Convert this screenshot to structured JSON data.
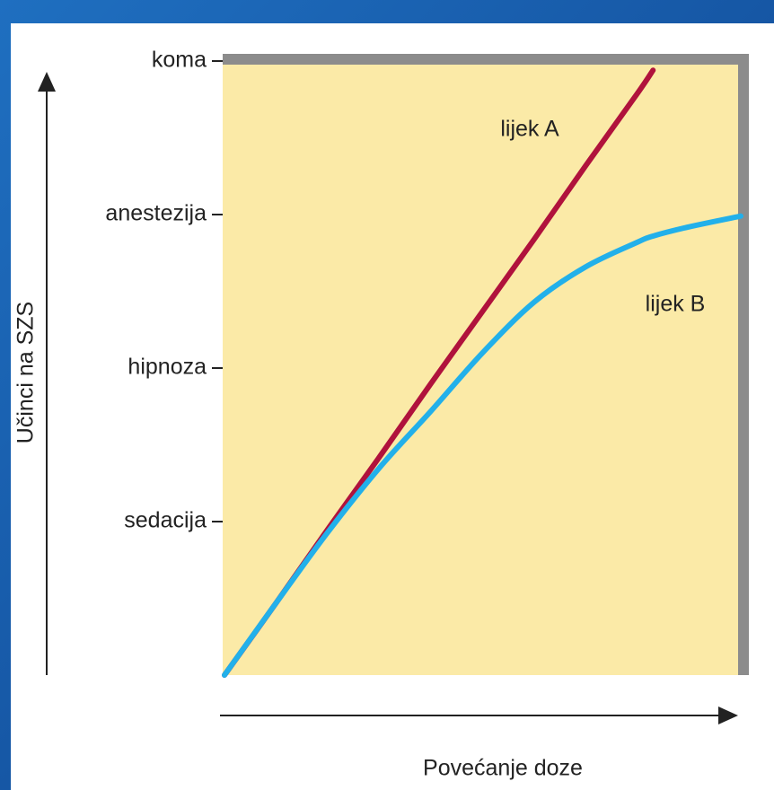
{
  "chart_data": {
    "type": "line",
    "y_label": "Učinci na SZS",
    "x_label": "Povećanje doze",
    "x": [
      0,
      1,
      2,
      3,
      4,
      5,
      6,
      7,
      8,
      8.3,
      9,
      10
    ],
    "xlim": [
      0,
      10
    ],
    "ylim": [
      0,
      4
    ],
    "yticks": [
      {
        "value": 1,
        "label": "sedacija"
      },
      {
        "value": 2,
        "label": "hipnoza"
      },
      {
        "value": 3,
        "label": "anestezija"
      },
      {
        "value": 4,
        "label": "koma"
      }
    ],
    "series": [
      {
        "name": "lijek A",
        "color": "#b0123c",
        "values": [
          0,
          0.47,
          0.95,
          1.42,
          1.9,
          2.37,
          2.84,
          3.32,
          3.79,
          3.94,
          null,
          null
        ]
      },
      {
        "name": "lijek B",
        "color": "#22b0ea",
        "values": [
          0,
          0.47,
          0.93,
          1.35,
          1.72,
          2.1,
          2.43,
          2.66,
          2.82,
          2.86,
          2.92,
          2.99
        ]
      }
    ]
  }
}
